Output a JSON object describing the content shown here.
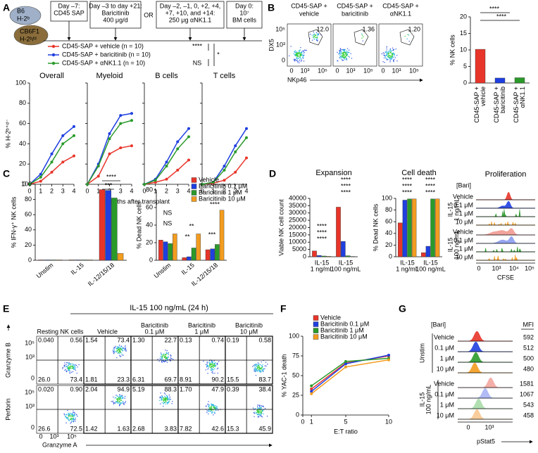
{
  "panel_labels": [
    "A",
    "B",
    "C",
    "D",
    "E",
    "F",
    "G"
  ],
  "schematic": {
    "donor": {
      "strain": "B6",
      "haplotype": "H-2ᵇ"
    },
    "recipient": {
      "strain": "CB6F1",
      "haplotype": "H-2ᵇ/ᵈ"
    },
    "steps": [
      [
        "Day –7:",
        "CD45 SAP"
      ],
      [
        "Day –3 to day +21:",
        "Baricitinib",
        "400 μg/d"
      ],
      [
        "Day –2, –1, 0, +2, +4,",
        "+7, +10, and +14:",
        "250 μg αNK1.1"
      ],
      [
        "Day 0:",
        "10⁷",
        "BM cells"
      ]
    ],
    "connector": "OR"
  },
  "chart_data": [
    {
      "type": "line",
      "title": "Overall",
      "ylabel": "% H-2ᵇ⁺ᵈ⁻",
      "xlabel": "Months after transplant",
      "x": [
        0,
        1,
        2,
        3,
        4
      ],
      "xlim": [
        0,
        4
      ],
      "xticks": [
        0,
        1,
        2,
        3,
        4
      ],
      "ylim": [
        0,
        100
      ],
      "yticks": [
        0,
        20,
        40,
        60,
        80,
        100
      ],
      "series": [
        {
          "name": "CD45-SAP + vehicle (n = 10)",
          "color": "#e8352a",
          "values": [
            0,
            3,
            12,
            22,
            28
          ]
        },
        {
          "name": "CD45-SAP + baricitinib (n = 10)",
          "color": "#1f3fe0",
          "values": [
            0,
            10,
            30,
            48,
            57
          ]
        },
        {
          "name": "CD45-SAP + αNK1.1 (n = 10)",
          "color": "#2a9a2a",
          "values": [
            0,
            7,
            22,
            40,
            48
          ]
        }
      ],
      "annotations": [
        "****",
        "*",
        "NS"
      ]
    },
    {
      "type": "line",
      "title": "Myeloid",
      "x": [
        0,
        1,
        2,
        3,
        4
      ],
      "xlim": [
        0,
        4
      ],
      "xticks": [
        0,
        1,
        2,
        3,
        4
      ],
      "ylim": [
        0,
        100
      ],
      "yticks": [
        0,
        20,
        40,
        60,
        80,
        100
      ],
      "series": [
        {
          "color": "#e8352a",
          "values": [
            0,
            8,
            30,
            36,
            38
          ]
        },
        {
          "color": "#1f3fe0",
          "values": [
            0,
            20,
            50,
            68,
            70
          ]
        },
        {
          "color": "#2a9a2a",
          "values": [
            0,
            18,
            45,
            60,
            63
          ]
        }
      ]
    },
    {
      "type": "line",
      "title": "B cells",
      "x": [
        0,
        1,
        2,
        3,
        4
      ],
      "xlim": [
        0,
        4
      ],
      "xticks": [
        0,
        1,
        2,
        3,
        4
      ],
      "ylim": [
        0,
        100
      ],
      "yticks": [
        0,
        20,
        40,
        60,
        80,
        100
      ],
      "series": [
        {
          "color": "#e8352a",
          "values": [
            0,
            2,
            5,
            14,
            24
          ]
        },
        {
          "color": "#1f3fe0",
          "values": [
            0,
            5,
            22,
            42,
            55
          ]
        },
        {
          "color": "#2a9a2a",
          "values": [
            0,
            4,
            18,
            35,
            47
          ]
        }
      ]
    },
    {
      "type": "line",
      "title": "T cells",
      "x": [
        0,
        1,
        2,
        3,
        4
      ],
      "xlim": [
        0,
        4
      ],
      "xticks": [
        0,
        1,
        2,
        3,
        4
      ],
      "ylim": [
        0,
        100
      ],
      "yticks": [
        0,
        20,
        40,
        60,
        80,
        100
      ],
      "series": [
        {
          "color": "#e8352a",
          "values": [
            0,
            1,
            4,
            12,
            26
          ]
        },
        {
          "color": "#1f3fe0",
          "values": [
            0,
            2,
            18,
            38,
            55
          ]
        },
        {
          "color": "#2a9a2a",
          "values": [
            0,
            2,
            14,
            32,
            46
          ]
        }
      ]
    },
    {
      "type": "bar",
      "ylabel": "% NK cells",
      "categories": [
        [
          "CD45-SAP +",
          "vehicle"
        ],
        [
          "CD45-SAP +",
          "baricitinib"
        ],
        [
          "CD45-SAP +",
          "αNK1.1"
        ]
      ],
      "values": [
        10.2,
        1.5,
        1.6
      ],
      "colors": [
        "#e8352a",
        "#1f3fe0",
        "#2a9a2a"
      ],
      "ylim": [
        0,
        20
      ],
      "yticks": [
        0,
        5,
        10,
        15,
        20
      ],
      "annotations": [
        "****",
        "****"
      ]
    },
    {
      "type": "bar",
      "ylabel": "% IFN-γ⁺ NK cells",
      "categories": [
        "Unstim",
        "IL-15",
        "IL-12/15/18"
      ],
      "ylim": [
        0,
        100
      ],
      "yticks": [
        0,
        20,
        40,
        60,
        80,
        100
      ],
      "series": [
        {
          "color": "#e8352a",
          "values": [
            0.5,
            0.5,
            93
          ]
        },
        {
          "color": "#1f3fe0",
          "values": [
            0.5,
            0.5,
            92
          ]
        },
        {
          "color": "#2a9a2a",
          "values": [
            0.5,
            0.5,
            82
          ]
        },
        {
          "color": "#f39c1f",
          "values": [
            0.5,
            0.5,
            9
          ]
        }
      ],
      "annotations": [
        "****",
        "***"
      ]
    },
    {
      "type": "bar",
      "ylabel": "% Dead NK cells",
      "categories": [
        "Unstim",
        "IL-15",
        "IL-12/15/18"
      ],
      "ylim": [
        0,
        80
      ],
      "yticks": [
        0,
        20,
        40,
        60,
        80
      ],
      "series": [
        {
          "name": "Vehicle",
          "color": "#e8352a",
          "values": [
            23,
            3,
            12
          ]
        },
        {
          "name": "Baricitinib 0.1 μM",
          "color": "#1f3fe0",
          "values": [
            21,
            4,
            13
          ]
        },
        {
          "name": "Baricitinib 1 μM",
          "color": "#2a9a2a",
          "values": [
            19,
            14,
            18
          ]
        },
        {
          "name": "Baricitinib 10 μM",
          "color": "#f39c1f",
          "values": [
            30,
            30,
            57
          ]
        }
      ],
      "annotations": [
        "NS",
        "NS",
        "**",
        "**",
        "***",
        "****"
      ]
    },
    {
      "type": "bar",
      "title": "Expansion",
      "ylabel": "Viable NK cell count",
      "categories": [
        [
          "IL-15",
          "1 ng/mL"
        ],
        [
          "IL-15",
          "100 ng/mL"
        ]
      ],
      "ylim": [
        0,
        40000
      ],
      "yticks": [
        0,
        5000,
        10000,
        15000,
        20000,
        25000,
        30000,
        35000,
        40000
      ],
      "series": [
        {
          "color": "#e8352a",
          "values": [
            4000,
            34000
          ]
        },
        {
          "color": "#1f3fe0",
          "values": [
            900,
            10500
          ]
        },
        {
          "color": "#2a9a2a",
          "values": [
            500,
            700
          ]
        },
        {
          "color": "#f39c1f",
          "values": [
            300,
            200
          ]
        }
      ],
      "annotations": [
        "****",
        "****",
        "****",
        "****",
        "****",
        "****"
      ]
    },
    {
      "type": "bar",
      "title": "Cell death",
      "ylabel": "% Dead NK cells",
      "categories": [
        [
          "IL-15",
          "1 ng/mL"
        ],
        [
          "IL-15",
          "100 ng/mL"
        ]
      ],
      "ylim": [
        0,
        100
      ],
      "yticks": [
        0,
        20,
        40,
        60,
        80,
        100
      ],
      "series": [
        {
          "color": "#e8352a",
          "values": [
            58,
            7
          ]
        },
        {
          "color": "#1f3fe0",
          "values": [
            97,
            18
          ]
        },
        {
          "color": "#2a9a2a",
          "values": [
            99,
            99
          ]
        },
        {
          "color": "#f39c1f",
          "values": [
            99,
            99
          ]
        }
      ],
      "annotations": [
        "****",
        "****",
        "****",
        "****",
        "****",
        "****"
      ]
    },
    {
      "type": "line",
      "ylabel": "% YAC-1 death",
      "xlabel": "E:T ratio",
      "x": [
        1,
        5,
        10
      ],
      "xlim": [
        0,
        10
      ],
      "xticks": [
        0,
        1,
        5,
        10
      ],
      "ylim": [
        0,
        100
      ],
      "yticks": [
        0,
        25,
        50,
        75,
        100
      ],
      "series": [
        {
          "name": "Vehicle",
          "color": "#e8352a",
          "values": [
            33,
            66,
            75
          ]
        },
        {
          "name": "Baricitinib 0.1 μM",
          "color": "#1f3fe0",
          "values": [
            30,
            65,
            76
          ]
        },
        {
          "name": "Baricitinib 1 μM",
          "color": "#2a9a2a",
          "values": [
            37,
            68,
            72
          ]
        },
        {
          "name": "Baricitinib 10 μM",
          "color": "#f39c1f",
          "values": [
            27,
            61,
            70
          ]
        }
      ]
    }
  ],
  "flow_b": {
    "panels": [
      {
        "title": [
          "CD45-SAP +",
          "vehicle"
        ],
        "gate": "12.0"
      },
      {
        "title": [
          "CD45-SAP +",
          "baricitinib"
        ],
        "gate": "1.36"
      },
      {
        "title": [
          "CD45-SAP +",
          "αNK1.1"
        ],
        "gate": "1.20"
      }
    ],
    "ylabel": "DX5",
    "xlabel": "NKp46",
    "ticks": [
      "0",
      "10³",
      "10⁵"
    ]
  },
  "proliferation": {
    "title": "Proliferation",
    "header": "[Bari]",
    "groups": [
      {
        "label": [
          "IL-15",
          "1 ng/mL"
        ],
        "rows": [
          "Vehicle",
          "0.1 μM",
          "1 μM",
          "10 μM"
        ]
      },
      {
        "label": [
          "IL-15",
          "100 ng/mL"
        ],
        "rows": [
          "Vehicle",
          "0.1 μM",
          "1 μM",
          "10 μM"
        ]
      }
    ],
    "xlabel": "CFSE",
    "xticks": [
      "0",
      "10³",
      "10⁴",
      "10⁵"
    ]
  },
  "flow_e": {
    "title": "IL-15 100 ng/mL (24 h)",
    "columns": [
      [
        "Resting NK cells"
      ],
      [
        "Vehicle"
      ],
      [
        "Baricitinib",
        "0.1 μM"
      ],
      [
        "Baricitinib",
        "1 μM"
      ],
      [
        "Baricitinib",
        "10 μM"
      ]
    ],
    "rows": [
      "Granzyme B",
      "Perforin"
    ],
    "xlabel": "Granzyme A",
    "ticks": [
      "0",
      "10³",
      "10⁵"
    ],
    "quadrants": [
      [
        [
          "0.040",
          "0.56",
          "26.0",
          "73.4"
        ],
        [
          "1.54",
          "73.4",
          "1.81",
          "23.3"
        ],
        [
          "1.30",
          "22.7",
          "6.31",
          "69.7"
        ],
        [
          "0.13",
          "0.74",
          "8.91",
          "90.2"
        ],
        [
          "0.19",
          "0.58",
          "15.5",
          "83.7"
        ]
      ],
      [
        [
          "0.020",
          "0.90",
          "26.6",
          "72.5"
        ],
        [
          "2.04",
          "94.9",
          "1.42",
          "1.63"
        ],
        [
          "5.19",
          "88.3",
          "2.68",
          "3.83"
        ],
        [
          "1.70",
          "47.9",
          "7.82",
          "42.6"
        ],
        [
          "0.39",
          "38.4",
          "15.3",
          "45.9"
        ]
      ]
    ]
  },
  "pstat5": {
    "header": "[Bari]",
    "mfi_header": "MFI",
    "groups": [
      {
        "label": [
          "Unstim"
        ],
        "rows": [
          "Vehicle",
          "0.1 μM",
          "1 μM",
          "10 μM"
        ],
        "mfi": [
          592,
          512,
          500,
          480
        ]
      },
      {
        "label": [
          "IL-15",
          "100 ng/mL"
        ],
        "rows": [
          "Vehicle",
          "0.1 μM",
          "1 μM",
          "10 μM"
        ],
        "mfi": [
          1581,
          1067,
          543,
          458
        ]
      }
    ],
    "xlabel": "pStat5",
    "xticks": [
      "0",
      "10³"
    ]
  }
}
